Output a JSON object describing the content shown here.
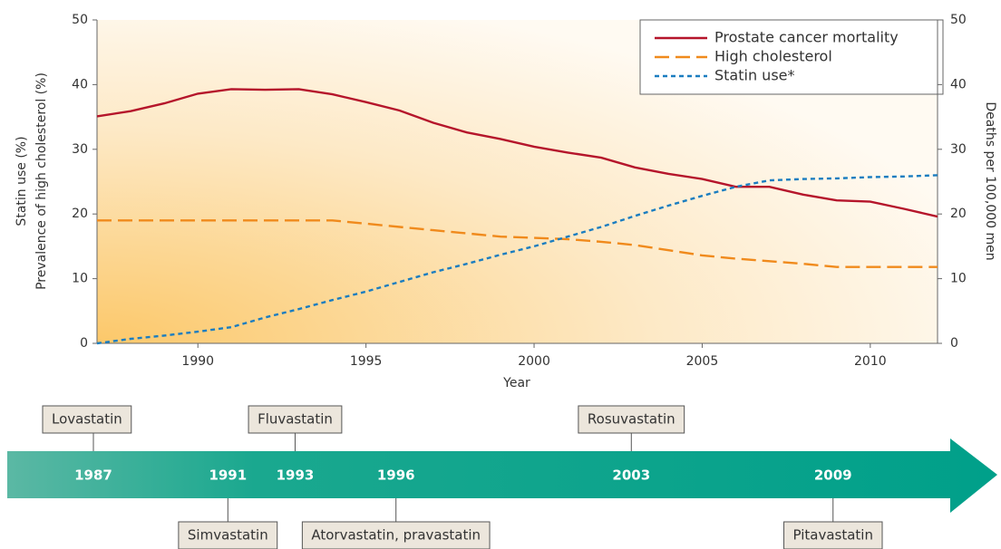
{
  "chart_data": {
    "type": "line",
    "y_label_lines": [
      "Statin use (%)",
      "Prevalence of high cholesterol (%)"
    ],
    "y2_label": "Deaths per 100,000 men",
    "x_label": "Year",
    "x": [
      1987,
      1988,
      1989,
      1990,
      1991,
      1992,
      1993,
      1994,
      1995,
      1996,
      1997,
      1998,
      1999,
      2000,
      2001,
      2002,
      2003,
      2004,
      2005,
      2006,
      2007,
      2008,
      2009,
      2010,
      2011,
      2012
    ],
    "xlim": [
      1987,
      2012
    ],
    "xticks": [
      1990,
      1995,
      2000,
      2005,
      2010
    ],
    "ylim": [
      0,
      50
    ],
    "yticks": [
      0,
      10,
      20,
      30,
      40,
      50
    ],
    "y2lim": [
      0,
      50
    ],
    "y2ticks": [
      0,
      10,
      20,
      30,
      40,
      50
    ],
    "series": [
      {
        "name": "Prostate cancer mortality",
        "color": "#b5152b",
        "axis": "y2",
        "style": "solid",
        "values": [
          35.1,
          35.9,
          37.1,
          38.6,
          39.3,
          39.2,
          39.3,
          38.5,
          37.3,
          36.0,
          34.1,
          32.6,
          31.6,
          30.4,
          29.5,
          28.7,
          27.2,
          26.2,
          25.4,
          24.2,
          24.2,
          23.0,
          22.1,
          21.9,
          20.8,
          19.6
        ]
      },
      {
        "name": "High cholesterol",
        "color": "#f08a1c",
        "style": "dashed",
        "values": [
          19,
          19,
          19,
          19,
          19,
          19,
          19,
          19,
          18.5,
          18.0,
          17.5,
          17.0,
          16.5,
          16.3,
          16.1,
          15.7,
          15.2,
          14.4,
          13.6,
          13.1,
          12.7,
          12.3,
          11.8,
          11.8,
          11.8,
          11.8
        ]
      },
      {
        "name": "Statin use*",
        "color": "#1a7dc0",
        "style": "dotted",
        "values": [
          0,
          0.7,
          1.2,
          1.8,
          2.5,
          4,
          5.3,
          6.7,
          8,
          9.5,
          11,
          12.3,
          13.7,
          15.0,
          16.5,
          18,
          19.7,
          21.3,
          22.8,
          24.2,
          25.2,
          25.4,
          25.5,
          25.7,
          25.8,
          26
        ]
      }
    ]
  },
  "timeline": [
    {
      "year": 1987,
      "drug": "Lovastatin"
    },
    {
      "year": 1991,
      "drug": "Simvastatin"
    },
    {
      "year": 1993,
      "drug": "Fluvastatin"
    },
    {
      "year": 1996,
      "drug": "Atorvastatin, pravastatin"
    },
    {
      "year": 2003,
      "drug": "Rosuvastatin"
    },
    {
      "year": 2009,
      "drug": "Pitavastatin"
    }
  ]
}
